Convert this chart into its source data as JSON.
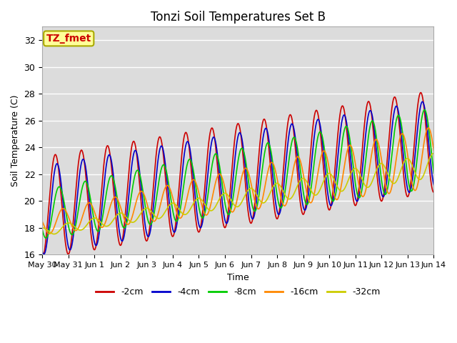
{
  "title": "Tonzi Soil Temperatures Set B",
  "xlabel": "Time",
  "ylabel": "Soil Temperature (C)",
  "ylim": [
    16,
    33
  ],
  "yticks": [
    16,
    18,
    20,
    22,
    24,
    26,
    28,
    30,
    32
  ],
  "legend_labels": [
    "-2cm",
    "-4cm",
    "-8cm",
    "-16cm",
    "-32cm"
  ],
  "legend_colors": [
    "#cc0000",
    "#0000cc",
    "#00cc00",
    "#ff8800",
    "#cccc00"
  ],
  "annotation_text": "TZ_fmet",
  "annotation_color": "#cc0000",
  "annotation_bg": "#ffff99",
  "background_color": "#dcdcdc",
  "title_fontsize": 12,
  "axis_fontsize": 8,
  "label_fontsize": 9,
  "num_days": 15
}
